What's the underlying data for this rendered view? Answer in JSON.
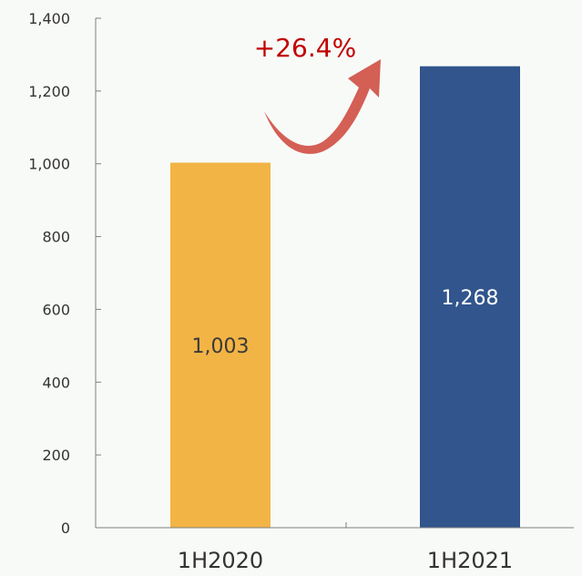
{
  "chart_data": {
    "type": "bar",
    "categories": [
      "1H2020",
      "1H2021"
    ],
    "values": [
      1003,
      1268
    ],
    "value_labels": [
      "1,003",
      "1,268"
    ],
    "bar_colors": [
      "#f2b445",
      "#31558c"
    ],
    "value_label_colors": [
      "#3a3a3a",
      "#ffffff"
    ],
    "y_ticks": [
      0,
      200,
      400,
      600,
      800,
      1000,
      1200,
      1400
    ],
    "y_tick_labels": [
      "0",
      "200",
      "400",
      "600",
      "800",
      "1,000",
      "1,200",
      "1,400"
    ],
    "ylim": [
      0,
      1400
    ],
    "grid": false,
    "title": "",
    "xlabel": "",
    "ylabel": "",
    "annotation": {
      "text": "+26.4%",
      "text_color": "#c00000",
      "arrow_color": "#d45f55"
    },
    "axis_color": "#7f7f7f",
    "tick_label_color": "#333333"
  }
}
